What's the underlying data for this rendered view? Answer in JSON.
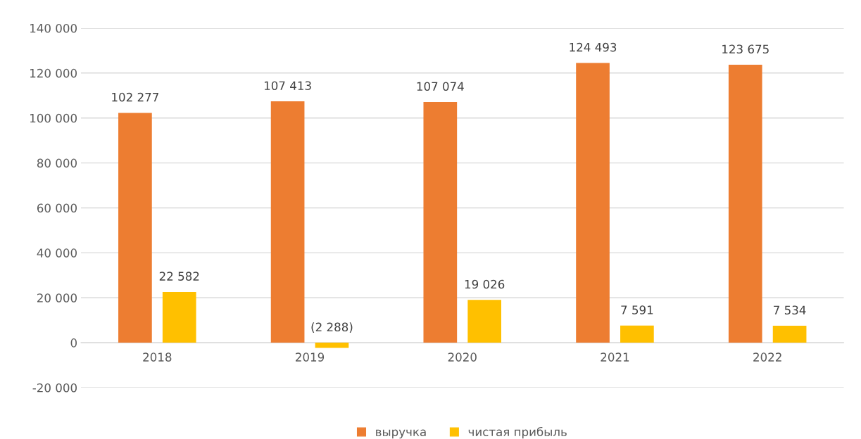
{
  "chart_data": {
    "type": "bar",
    "categories": [
      "2018",
      "2019",
      "2020",
      "2021",
      "2022"
    ],
    "series": [
      {
        "name": "выручка",
        "color": "#ed7d31",
        "values": [
          102277,
          107413,
          107074,
          124493,
          123675
        ],
        "value_labels": [
          "102 277",
          "107 413",
          "107 074",
          "124 493",
          "123 675"
        ]
      },
      {
        "name": "чистая прибыль",
        "color": "#ffc000",
        "values": [
          22582,
          -2288,
          19026,
          7591,
          7534
        ],
        "value_labels": [
          "22 582",
          "(2 288)",
          "19 026",
          "7 591",
          "7 534"
        ]
      }
    ],
    "ylim": [
      -20000,
      140000
    ],
    "yticks": [
      {
        "value": -20000,
        "label": "-20 000"
      },
      {
        "value": 0,
        "label": "0"
      },
      {
        "value": 20000,
        "label": "20 000"
      },
      {
        "value": 40000,
        "label": "40 000"
      },
      {
        "value": 60000,
        "label": "60 000"
      },
      {
        "value": 80000,
        "label": "80 000"
      },
      {
        "value": 100000,
        "label": "100 000"
      },
      {
        "value": 120000,
        "label": "120 000"
      },
      {
        "value": 140000,
        "label": "140 000"
      }
    ],
    "grid": "y",
    "legend": "bottom"
  }
}
